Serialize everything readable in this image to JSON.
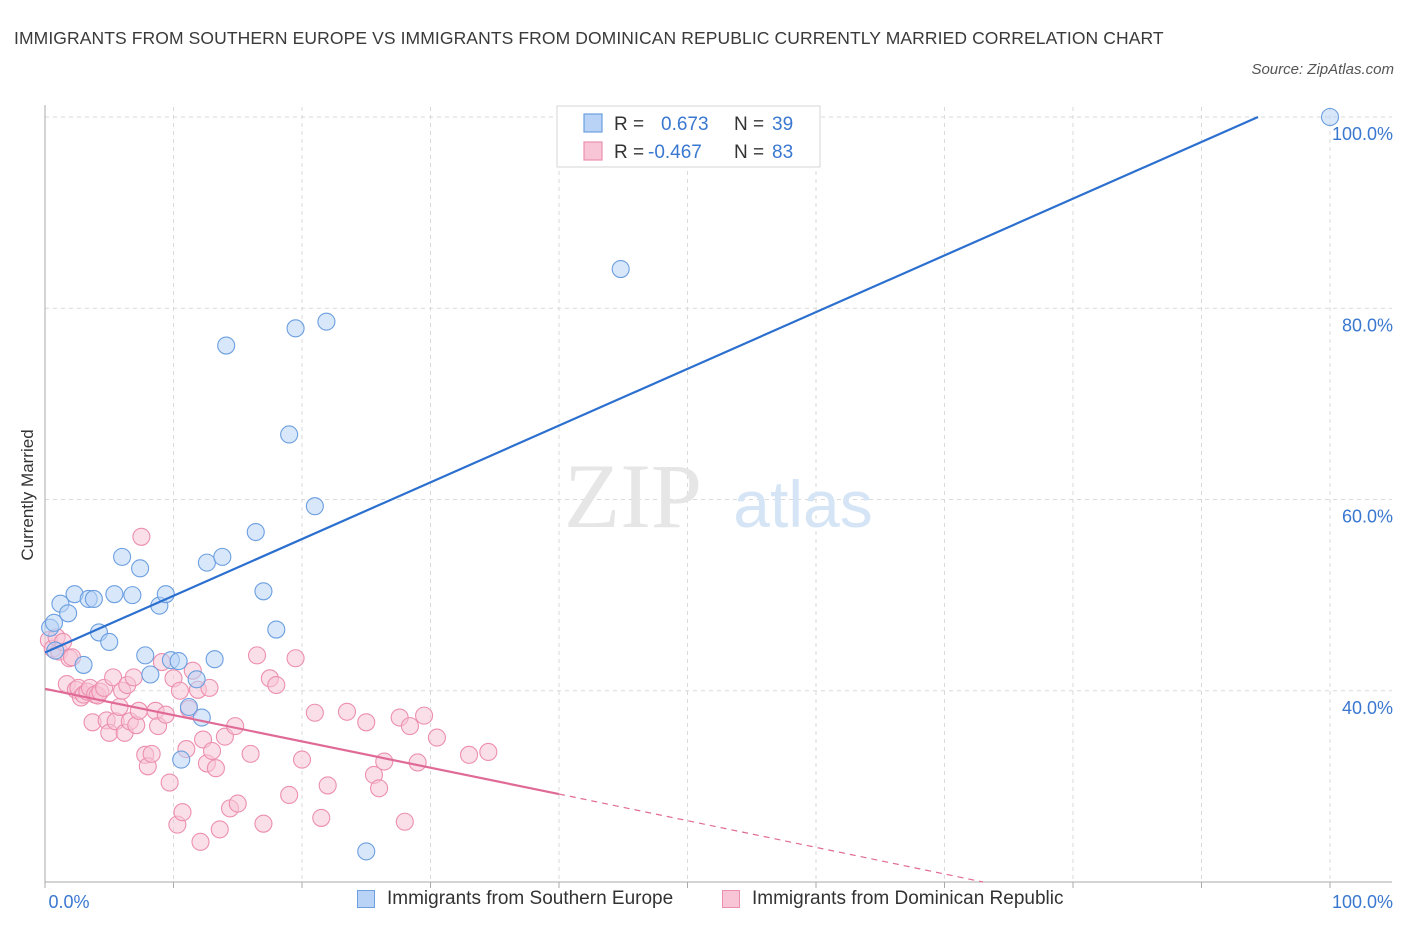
{
  "title": "IMMIGRANTS FROM SOUTHERN EUROPE VS IMMIGRANTS FROM DOMINICAN REPUBLIC CURRENTLY MARRIED CORRELATION CHART",
  "source": "Source: ZipAtlas.com",
  "watermark": {
    "zip": "ZIP",
    "atlas": "atlas"
  },
  "colors": {
    "blue_fill": "#b8d3f5",
    "blue_stroke": "#6c9fe0",
    "blue_line": "#2b6fcf",
    "blue_text": "#3a78d0",
    "pink_fill": "#f8c5d6",
    "pink_stroke": "#ec8fae",
    "pink_line": "#e06a96",
    "grid": "#d9d9d9",
    "axis": "#aaaaaa"
  },
  "legend_top": {
    "rows": [
      {
        "r_label": "R =",
        "r_value": "0.673",
        "n_label": "N =",
        "n_value": "39"
      },
      {
        "r_label": "R =",
        "r_value": "-0.467",
        "n_label": "N =",
        "n_value": "83"
      }
    ]
  },
  "legend_bottom": [
    {
      "label": "Immigrants from Southern Europe"
    },
    {
      "label": "Immigrants from Dominican Republic"
    }
  ],
  "chart_data": {
    "type": "scatter",
    "title": "IMMIGRANTS FROM SOUTHERN EUROPE VS IMMIGRANTS FROM DOMINICAN REPUBLIC CURRENTLY MARRIED CORRELATION CHART",
    "xlabel": "",
    "ylabel": "Currently Married",
    "xlim": [
      0,
      100
    ],
    "ylim": [
      20,
      100
    ],
    "x_ticks": [
      "0.0%",
      "100.0%"
    ],
    "y_ticks": [
      {
        "value": 40,
        "label": "40.0%"
      },
      {
        "value": 60,
        "label": "60.0%"
      },
      {
        "value": 80,
        "label": "80.0%"
      },
      {
        "value": 100,
        "label": "100.0%"
      }
    ],
    "grid": true,
    "legend_position": "top-center",
    "series": [
      {
        "name": "Immigrants from Southern Europe",
        "color": "blue",
        "R": 0.673,
        "N": 39,
        "trend": {
          "x0": 0,
          "y0": 44.0,
          "x1": 94.4,
          "y1": 100
        },
        "points": [
          [
            0.4,
            46.6
          ],
          [
            0.7,
            47.1
          ],
          [
            0.8,
            44.2
          ],
          [
            1.2,
            49.1
          ],
          [
            1.8,
            48.1
          ],
          [
            2.3,
            50.1
          ],
          [
            3.0,
            42.7
          ],
          [
            3.4,
            49.6
          ],
          [
            3.8,
            49.6
          ],
          [
            4.2,
            46.1
          ],
          [
            5.0,
            45.1
          ],
          [
            5.4,
            50.1
          ],
          [
            6.0,
            54.0
          ],
          [
            6.8,
            50.0
          ],
          [
            7.4,
            52.8
          ],
          [
            7.8,
            43.7
          ],
          [
            8.2,
            41.7
          ],
          [
            8.9,
            48.9
          ],
          [
            9.4,
            50.1
          ],
          [
            9.8,
            43.2
          ],
          [
            10.4,
            43.1
          ],
          [
            10.6,
            32.8
          ],
          [
            11.2,
            38.3
          ],
          [
            11.8,
            41.2
          ],
          [
            12.2,
            37.2
          ],
          [
            12.6,
            53.4
          ],
          [
            13.2,
            43.3
          ],
          [
            13.8,
            54.0
          ],
          [
            14.1,
            76.1
          ],
          [
            16.4,
            56.6
          ],
          [
            17.0,
            50.4
          ],
          [
            18.0,
            46.4
          ],
          [
            19.0,
            66.8
          ],
          [
            19.5,
            77.9
          ],
          [
            21.0,
            59.3
          ],
          [
            21.9,
            78.6
          ],
          [
            25.0,
            23.2
          ],
          [
            44.8,
            84.1
          ],
          [
            100.0,
            100.0
          ]
        ]
      },
      {
        "name": "Immigrants from Dominican Republic",
        "color": "pink",
        "R": -0.467,
        "N": 83,
        "trend": {
          "x0": 0,
          "y0": 40.2,
          "x1": 40.0,
          "y1": 29.2
        },
        "trend_dashed": {
          "x0": 40.0,
          "y0": 29.2,
          "x1": 73.0,
          "y1": 20.0
        },
        "points": [
          [
            0.3,
            45.3
          ],
          [
            0.6,
            44.4
          ],
          [
            0.9,
            45.6
          ],
          [
            1.1,
            44.1
          ],
          [
            1.4,
            45.1
          ],
          [
            1.7,
            40.7
          ],
          [
            1.9,
            43.4
          ],
          [
            2.1,
            43.5
          ],
          [
            2.4,
            40.1
          ],
          [
            2.6,
            40.3
          ],
          [
            2.8,
            39.3
          ],
          [
            3.0,
            39.6
          ],
          [
            3.3,
            39.9
          ],
          [
            3.5,
            40.3
          ],
          [
            3.7,
            36.7
          ],
          [
            3.9,
            39.6
          ],
          [
            4.1,
            39.5
          ],
          [
            4.3,
            39.9
          ],
          [
            4.6,
            40.3
          ],
          [
            4.8,
            36.9
          ],
          [
            5.0,
            35.6
          ],
          [
            5.3,
            41.4
          ],
          [
            5.5,
            36.8
          ],
          [
            5.8,
            38.3
          ],
          [
            6.0,
            40.0
          ],
          [
            6.2,
            35.6
          ],
          [
            6.4,
            40.6
          ],
          [
            6.6,
            36.8
          ],
          [
            6.9,
            41.4
          ],
          [
            7.1,
            36.4
          ],
          [
            7.3,
            37.9
          ],
          [
            7.5,
            56.1
          ],
          [
            7.8,
            33.3
          ],
          [
            8.0,
            32.1
          ],
          [
            8.3,
            33.4
          ],
          [
            8.6,
            37.9
          ],
          [
            8.8,
            36.3
          ],
          [
            9.1,
            43.0
          ],
          [
            9.4,
            37.5
          ],
          [
            9.7,
            30.4
          ],
          [
            10.0,
            41.3
          ],
          [
            10.3,
            26.0
          ],
          [
            10.5,
            40.0
          ],
          [
            10.7,
            27.3
          ],
          [
            11.0,
            33.9
          ],
          [
            11.2,
            38.1
          ],
          [
            11.5,
            42.1
          ],
          [
            11.9,
            40.1
          ],
          [
            12.1,
            24.2
          ],
          [
            12.3,
            34.9
          ],
          [
            12.6,
            32.4
          ],
          [
            12.8,
            40.3
          ],
          [
            13.0,
            33.7
          ],
          [
            13.3,
            31.9
          ],
          [
            13.6,
            25.5
          ],
          [
            14.0,
            35.2
          ],
          [
            14.4,
            27.7
          ],
          [
            14.8,
            36.3
          ],
          [
            15.0,
            28.2
          ],
          [
            16.0,
            33.4
          ],
          [
            16.5,
            43.7
          ],
          [
            17.0,
            26.1
          ],
          [
            17.5,
            41.3
          ],
          [
            18.0,
            40.6
          ],
          [
            19.0,
            29.1
          ],
          [
            19.5,
            43.4
          ],
          [
            20.0,
            32.8
          ],
          [
            21.0,
            37.7
          ],
          [
            21.5,
            26.7
          ],
          [
            22.0,
            30.1
          ],
          [
            23.5,
            37.8
          ],
          [
            25.0,
            36.7
          ],
          [
            25.6,
            31.2
          ],
          [
            26.0,
            29.8
          ],
          [
            26.4,
            32.6
          ],
          [
            27.6,
            37.2
          ],
          [
            28.0,
            26.3
          ],
          [
            28.4,
            36.3
          ],
          [
            29.0,
            32.5
          ],
          [
            29.5,
            37.4
          ],
          [
            30.5,
            35.1
          ],
          [
            33.0,
            33.3
          ],
          [
            34.5,
            33.6
          ]
        ]
      }
    ]
  }
}
